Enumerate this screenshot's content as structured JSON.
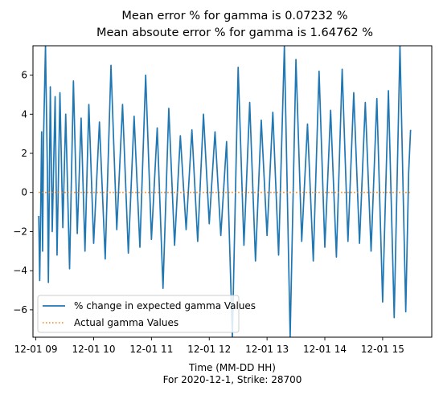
{
  "chart_data": {
    "type": "line",
    "title_lines": [
      "Mean error % for gamma is 0.07232 %",
      "Mean absoute error % for gamma is 1.64762 %"
    ],
    "xlabel_lines": [
      "Time (MM-DD HH)",
      "For 2020-12-1, Strike: 28700"
    ],
    "ylabel": "",
    "xlim": [
      "2020-12-01 08:57",
      "2020-12-01 15:51"
    ],
    "ylim": [
      -7.4,
      7.5
    ],
    "x_ticks": [
      {
        "value": "2020-12-01 09:00",
        "label": "12-01 09"
      },
      {
        "value": "2020-12-01 10:00",
        "label": "12-01 10"
      },
      {
        "value": "2020-12-01 11:00",
        "label": "12-01 11"
      },
      {
        "value": "2020-12-01 12:00",
        "label": "12-01 12"
      },
      {
        "value": "2020-12-01 13:00",
        "label": "12-01 13"
      },
      {
        "value": "2020-12-01 14:00",
        "label": "12-01 14"
      },
      {
        "value": "2020-12-01 15:00",
        "label": "12-01 15"
      }
    ],
    "y_ticks": [
      {
        "value": -6,
        "label": "−6"
      },
      {
        "value": -4,
        "label": "−4"
      },
      {
        "value": -2,
        "label": "−2"
      },
      {
        "value": 0,
        "label": "0"
      },
      {
        "value": 2,
        "label": "2"
      },
      {
        "value": 4,
        "label": "4"
      },
      {
        "value": 6,
        "label": "6"
      }
    ],
    "grid": false,
    "legend_position": "lower-left",
    "series": [
      {
        "name": "% change in expected gamma Values",
        "color": "#1f77b4",
        "style": "solid",
        "x": [
          "2020-12-01 09:03",
          "2020-12-01 09:04",
          "2020-12-01 09:05",
          "2020-12-01 09:06",
          "2020-12-01 09:07",
          "2020-12-01 09:08",
          "2020-12-01 09:10",
          "2020-12-01 09:12",
          "2020-12-01 09:13",
          "2020-12-01 09:15",
          "2020-12-01 09:17",
          "2020-12-01 09:20",
          "2020-12-01 09:22",
          "2020-12-01 09:25",
          "2020-12-01 09:28",
          "2020-12-01 09:31",
          "2020-12-01 09:35",
          "2020-12-01 09:39",
          "2020-12-01 09:43",
          "2020-12-01 09:47",
          "2020-12-01 09:51",
          "2020-12-01 09:55",
          "2020-12-01 10:00",
          "2020-12-01 10:06",
          "2020-12-01 10:12",
          "2020-12-01 10:18",
          "2020-12-01 10:24",
          "2020-12-01 10:30",
          "2020-12-01 10:36",
          "2020-12-01 10:42",
          "2020-12-01 10:48",
          "2020-12-01 10:54",
          "2020-12-01 11:00",
          "2020-12-01 11:06",
          "2020-12-01 11:12",
          "2020-12-01 11:18",
          "2020-12-01 11:24",
          "2020-12-01 11:30",
          "2020-12-01 11:36",
          "2020-12-01 11:42",
          "2020-12-01 11:48",
          "2020-12-01 11:54",
          "2020-12-01 12:00",
          "2020-12-01 12:06",
          "2020-12-01 12:12",
          "2020-12-01 12:18",
          "2020-12-01 12:24",
          "2020-12-01 12:30",
          "2020-12-01 12:36",
          "2020-12-01 12:42",
          "2020-12-01 12:48",
          "2020-12-01 12:54",
          "2020-12-01 13:00",
          "2020-12-01 13:06",
          "2020-12-01 13:12",
          "2020-12-01 13:18",
          "2020-12-01 13:24",
          "2020-12-01 13:30",
          "2020-12-01 13:36",
          "2020-12-01 13:42",
          "2020-12-01 13:48",
          "2020-12-01 13:54",
          "2020-12-01 14:00",
          "2020-12-01 14:06",
          "2020-12-01 14:12",
          "2020-12-01 14:18",
          "2020-12-01 14:24",
          "2020-12-01 14:30",
          "2020-12-01 14:36",
          "2020-12-01 14:42",
          "2020-12-01 14:48",
          "2020-12-01 14:54",
          "2020-12-01 15:00",
          "2020-12-01 15:06",
          "2020-12-01 15:12",
          "2020-12-01 15:18",
          "2020-12-01 15:24",
          "2020-12-01 15:27",
          "2020-12-01 15:29"
        ],
        "values": [
          -1.2,
          -4.5,
          -1.0,
          3.1,
          -3.0,
          2.8,
          7.5,
          1.0,
          -4.6,
          5.4,
          -2.0,
          4.9,
          -3.2,
          5.1,
          -1.8,
          4.0,
          -3.9,
          5.7,
          -2.1,
          3.8,
          -3.0,
          4.5,
          -2.6,
          3.6,
          -3.4,
          6.5,
          -1.9,
          4.5,
          -3.1,
          3.9,
          -2.8,
          6.0,
          -2.4,
          3.3,
          -4.9,
          4.3,
          -2.7,
          2.9,
          -1.9,
          3.2,
          -2.5,
          4.0,
          -1.6,
          3.1,
          -2.2,
          2.6,
          -7.4,
          6.4,
          -2.7,
          4.6,
          -3.5,
          3.7,
          -2.2,
          4.1,
          -3.2,
          7.5,
          -7.4,
          6.8,
          -2.5,
          3.5,
          -3.5,
          6.2,
          -2.8,
          4.2,
          -3.3,
          6.3,
          -2.5,
          5.1,
          -2.6,
          4.6,
          -3.0,
          4.8,
          -5.6,
          5.2,
          -6.4,
          7.5,
          -6.1,
          1.0,
          3.2
        ]
      },
      {
        "name": "Actual gamma Values",
        "color": "#ff7f0e",
        "style": "dotted",
        "x": [
          "2020-12-01 09:03",
          "2020-12-01 15:29"
        ],
        "values": [
          0,
          0
        ]
      }
    ]
  }
}
